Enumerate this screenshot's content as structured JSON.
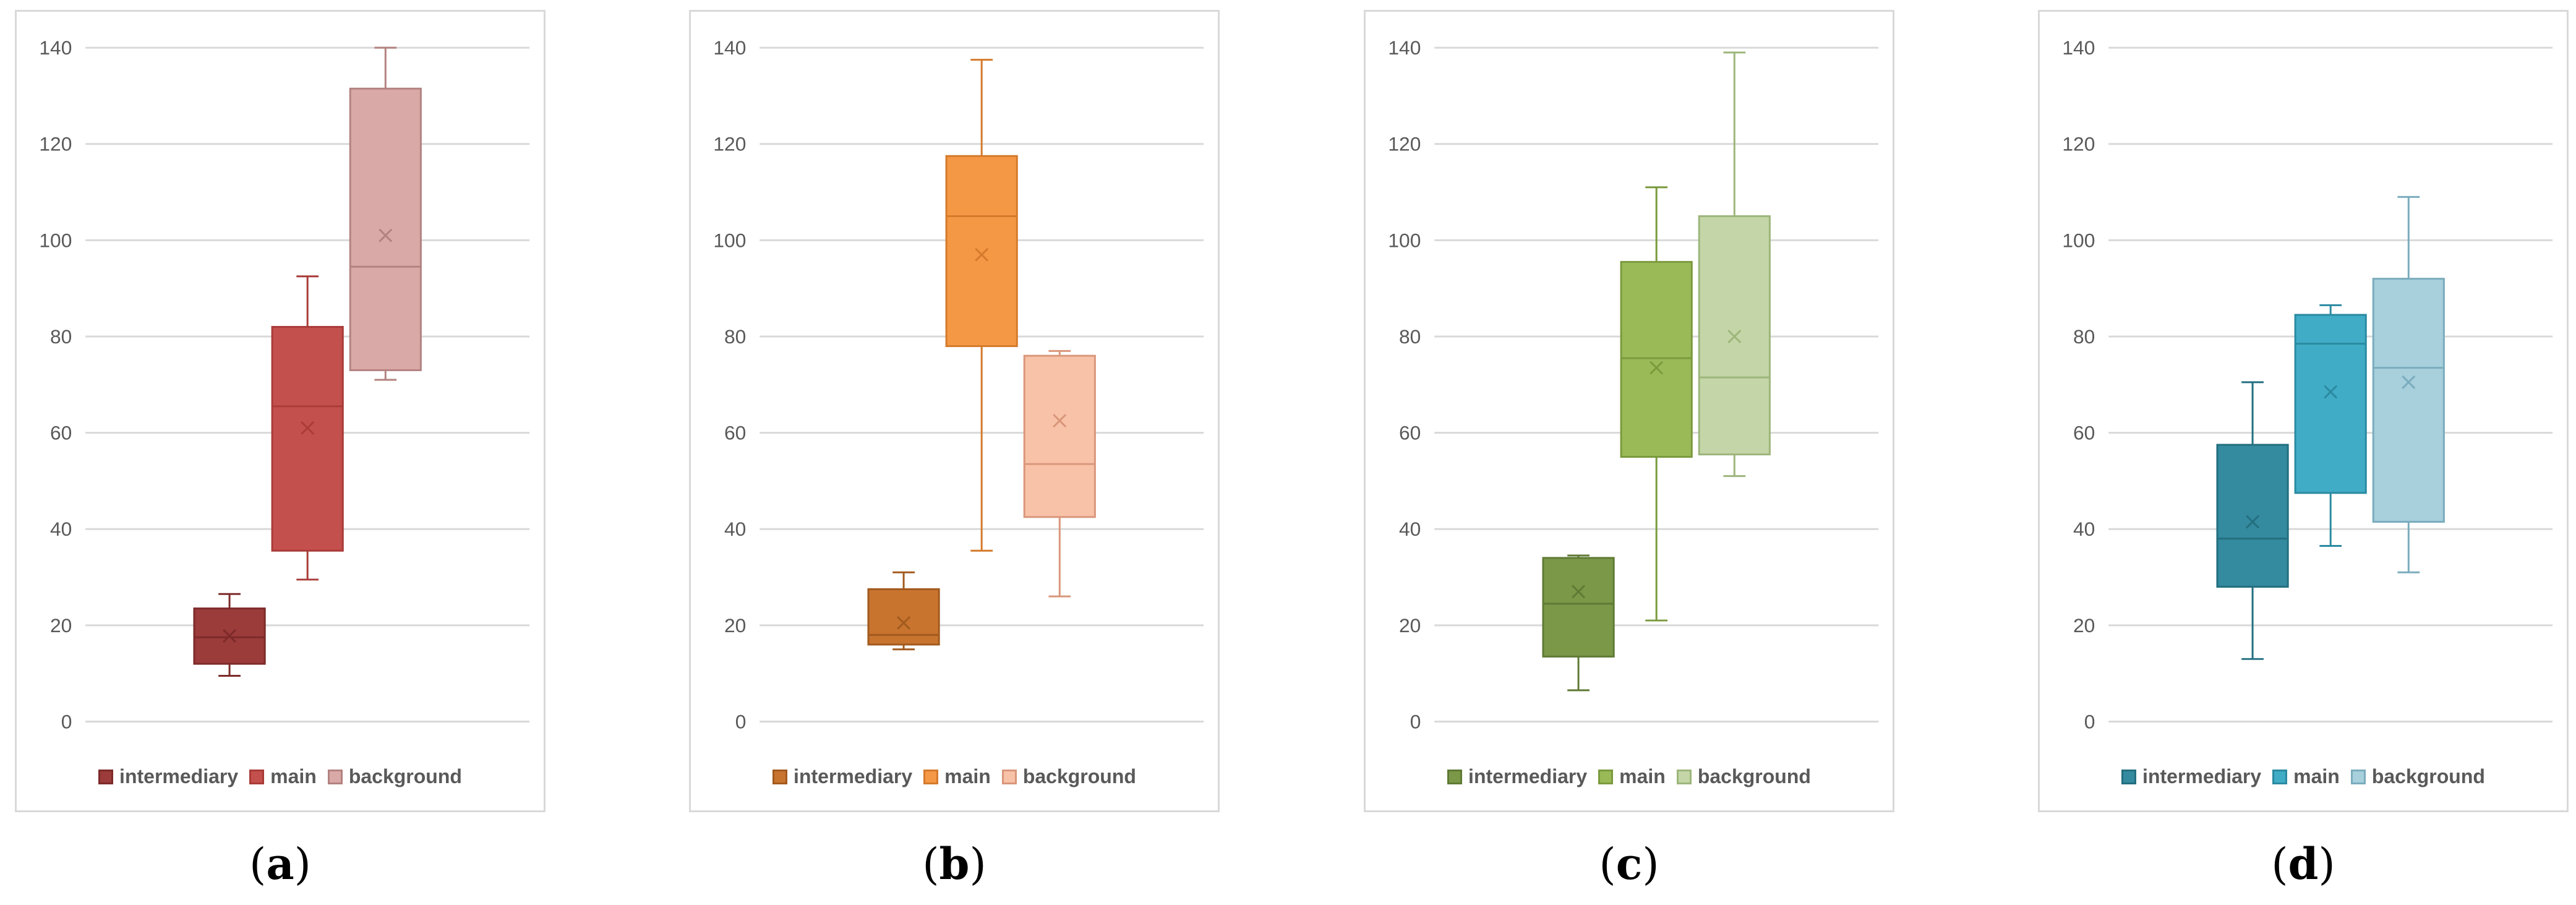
{
  "legend_labels": [
    "intermediary",
    "main",
    "background"
  ],
  "chart_data": [
    {
      "type": "box",
      "label": "a",
      "yticks": [
        "0",
        "20",
        "40",
        "60",
        "80",
        "100",
        "120",
        "140"
      ],
      "ylim": [
        0,
        140
      ],
      "series": [
        {
          "name": "intermediary",
          "min": 9.5,
          "q1": 12,
          "median": 17.5,
          "q3": 23.5,
          "max": 26.5,
          "mean": 17.8,
          "fill": "#9b3b3a",
          "stroke": "#7d2a2a"
        },
        {
          "name": "main",
          "min": 29.5,
          "q1": 35.5,
          "median": 65.5,
          "q3": 82,
          "max": 92.5,
          "mean": 61,
          "fill": "#c4504d",
          "stroke": "#a93b38"
        },
        {
          "name": "background",
          "min": 71,
          "q1": 73,
          "median": 94.5,
          "q3": 131.5,
          "max": 140,
          "mean": 101,
          "fill": "#d9a9a8",
          "stroke": "#b38280"
        }
      ]
    },
    {
      "type": "box",
      "label": "b",
      "yticks": [
        "0",
        "20",
        "40",
        "60",
        "80",
        "100",
        "120",
        "140"
      ],
      "ylim": [
        0,
        140
      ],
      "series": [
        {
          "name": "intermediary",
          "min": 15,
          "q1": 16,
          "median": 18,
          "q3": 27.5,
          "max": 31,
          "mean": 20.5,
          "fill": "#c8742f",
          "stroke": "#a25a1e"
        },
        {
          "name": "main",
          "min": 35.5,
          "q1": 78,
          "median": 105,
          "q3": 117.5,
          "max": 137.5,
          "mean": 97,
          "fill": "#f59846",
          "stroke": "#d47a2b"
        },
        {
          "name": "background",
          "min": 26,
          "q1": 42.5,
          "median": 53.5,
          "q3": 76,
          "max": 77,
          "mean": 62.5,
          "fill": "#f8c2a8",
          "stroke": "#d9967a"
        }
      ]
    },
    {
      "type": "box",
      "label": "c",
      "yticks": [
        "0",
        "20",
        "40",
        "60",
        "80",
        "100",
        "120",
        "140"
      ],
      "ylim": [
        0,
        140
      ],
      "series": [
        {
          "name": "intermediary",
          "min": 6.5,
          "q1": 13.5,
          "median": 24.5,
          "q3": 34,
          "max": 34.5,
          "mean": 27,
          "fill": "#7b9849",
          "stroke": "#5f7a34"
        },
        {
          "name": "main",
          "min": 21,
          "q1": 55,
          "median": 75.5,
          "q3": 95.5,
          "max": 111,
          "mean": 73.5,
          "fill": "#9aba57",
          "stroke": "#7a9a3d"
        },
        {
          "name": "background",
          "min": 51,
          "q1": 55.5,
          "median": 71.5,
          "q3": 105,
          "max": 139,
          "mean": 80,
          "fill": "#c4d6a7",
          "stroke": "#9db57b"
        }
      ]
    },
    {
      "type": "box",
      "label": "d",
      "yticks": [
        "0",
        "20",
        "40",
        "60",
        "80",
        "100",
        "120",
        "140"
      ],
      "ylim": [
        0,
        140
      ],
      "series": [
        {
          "name": "intermediary",
          "min": 13,
          "q1": 28,
          "median": 38,
          "q3": 57.5,
          "max": 70.5,
          "mean": 41.5,
          "fill": "#348a9e",
          "stroke": "#236f80"
        },
        {
          "name": "main",
          "min": 36.5,
          "q1": 47.5,
          "median": 78.5,
          "q3": 84.5,
          "max": 86.5,
          "mean": 68.5,
          "fill": "#41acc5",
          "stroke": "#2a8aa1"
        },
        {
          "name": "background",
          "min": 31,
          "q1": 41.5,
          "median": 73.5,
          "q3": 92,
          "max": 109,
          "mean": 70.5,
          "fill": "#a7cfdc",
          "stroke": "#7aacbd"
        }
      ]
    }
  ]
}
